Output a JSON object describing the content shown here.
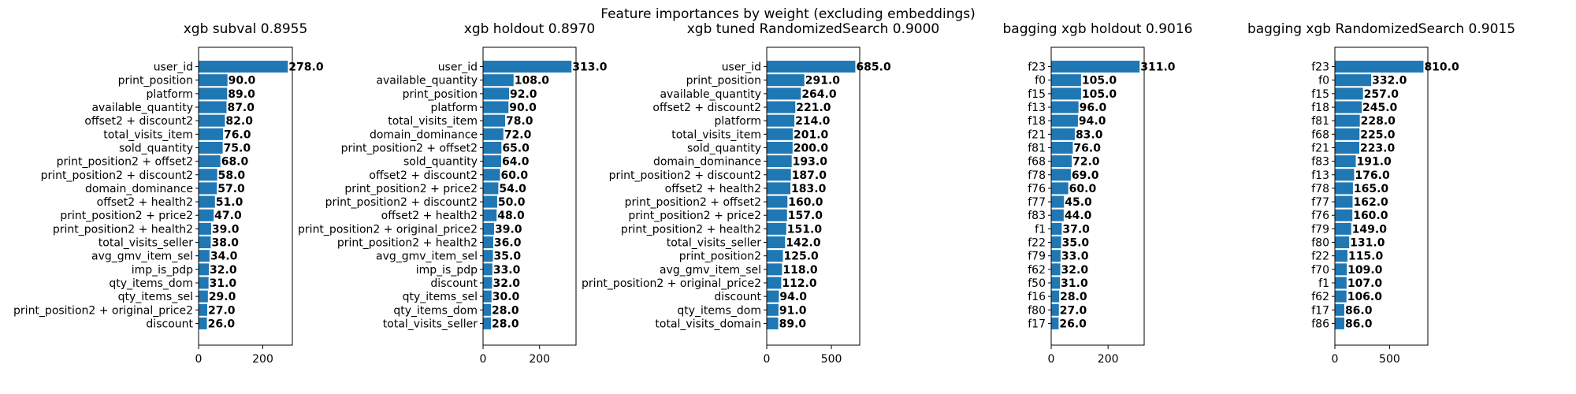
{
  "figure": {
    "title": "Feature importances by weight (excluding embeddings)"
  },
  "colors": {
    "bar": "#1f77b4",
    "axis": "#000000"
  },
  "chart_data": [
    {
      "type": "bar",
      "orientation": "horizontal",
      "title": "xgb subval 0.8955",
      "xlim": [
        0,
        292
      ],
      "xticks": [
        0,
        200
      ],
      "categories": [
        "user_id",
        "print_position",
        "platform",
        "available_quantity",
        "offset2 + discount2",
        "total_visits_item",
        "sold_quantity",
        "print_position2 + offset2",
        "print_position2 + discount2",
        "domain_dominance",
        "offset2 + health2",
        "print_position2 + price2",
        "print_position2 + health2",
        "total_visits_seller",
        "avg_gmv_item_sel",
        "imp_is_pdp",
        "qty_items_dom",
        "qty_items_sel",
        "print_position2 + original_price2",
        "discount"
      ],
      "values": [
        278.0,
        90.0,
        89.0,
        87.0,
        82.0,
        76.0,
        75.0,
        68.0,
        58.0,
        57.0,
        51.0,
        47.0,
        39.0,
        38.0,
        34.0,
        32.0,
        31.0,
        29.0,
        27.0,
        26.0
      ],
      "value_labels": [
        "278.0",
        "90.0",
        "89.0",
        "87.0",
        "82.0",
        "76.0",
        "75.0",
        "68.0",
        "58.0",
        "57.0",
        "51.0",
        "47.0",
        "39.0",
        "38.0",
        "34.0",
        "32.0",
        "31.0",
        "29.0",
        "27.0",
        "26.0"
      ]
    },
    {
      "type": "bar",
      "orientation": "horizontal",
      "title": "xgb holdout 0.8970",
      "xlim": [
        0,
        329
      ],
      "xticks": [
        0,
        200
      ],
      "categories": [
        "user_id",
        "available_quantity",
        "print_position",
        "platform",
        "total_visits_item",
        "domain_dominance",
        "print_position2 + offset2",
        "sold_quantity",
        "offset2 + discount2",
        "print_position2 + price2",
        "print_position2 + discount2",
        "offset2 + health2",
        "print_position2 + original_price2",
        "print_position2 + health2",
        "avg_gmv_item_sel",
        "imp_is_pdp",
        "discount",
        "qty_items_sel",
        "qty_items_dom",
        "total_visits_seller"
      ],
      "values": [
        313.0,
        108.0,
        92.0,
        90.0,
        78.0,
        72.0,
        65.0,
        64.0,
        60.0,
        54.0,
        50.0,
        48.0,
        39.0,
        36.0,
        35.0,
        33.0,
        32.0,
        30.0,
        28.0,
        28.0
      ],
      "value_labels": [
        "313.0",
        "108.0",
        "92.0",
        "90.0",
        "78.0",
        "72.0",
        "65.0",
        "64.0",
        "60.0",
        "54.0",
        "50.0",
        "48.0",
        "39.0",
        "36.0",
        "35.0",
        "33.0",
        "32.0",
        "30.0",
        "28.0",
        "28.0"
      ]
    },
    {
      "type": "bar",
      "orientation": "horizontal",
      "title": "xgb tuned RandomizedSearch 0.9000",
      "xlim": [
        0,
        719
      ],
      "xticks": [
        0,
        500
      ],
      "categories": [
        "user_id",
        "print_position",
        "available_quantity",
        "offset2 + discount2",
        "platform",
        "total_visits_item",
        "sold_quantity",
        "domain_dominance",
        "print_position2 + discount2",
        "offset2 + health2",
        "print_position2 + offset2",
        "print_position2 + price2",
        "print_position2 + health2",
        "total_visits_seller",
        "print_position2",
        "avg_gmv_item_sel",
        "print_position2 + original_price2",
        "discount",
        "qty_items_dom",
        "total_visits_domain"
      ],
      "values": [
        685.0,
        291.0,
        264.0,
        221.0,
        214.0,
        201.0,
        200.0,
        193.0,
        187.0,
        183.0,
        160.0,
        157.0,
        151.0,
        142.0,
        125.0,
        118.0,
        112.0,
        94.0,
        91.0,
        89.0
      ],
      "value_labels": [
        "685.0",
        "291.0",
        "264.0",
        "221.0",
        "214.0",
        "201.0",
        "200.0",
        "193.0",
        "187.0",
        "183.0",
        "160.0",
        "157.0",
        "151.0",
        "142.0",
        "125.0",
        "118.0",
        "112.0",
        "94.0",
        "91.0",
        "89.0"
      ]
    },
    {
      "type": "bar",
      "orientation": "horizontal",
      "title": "bagging xgb holdout 0.9016",
      "xlim": [
        0,
        327
      ],
      "xticks": [
        0,
        200
      ],
      "categories": [
        "f23",
        "f0",
        "f15",
        "f13",
        "f18",
        "f21",
        "f81",
        "f68",
        "f78",
        "f76",
        "f77",
        "f83",
        "f1",
        "f22",
        "f79",
        "f62",
        "f50",
        "f16",
        "f80",
        "f17"
      ],
      "values": [
        311.0,
        105.0,
        105.0,
        96.0,
        94.0,
        83.0,
        76.0,
        72.0,
        69.0,
        60.0,
        45.0,
        44.0,
        37.0,
        35.0,
        33.0,
        32.0,
        31.0,
        28.0,
        27.0,
        26.0
      ],
      "value_labels": [
        "311.0",
        "105.0",
        "105.0",
        "96.0",
        "94.0",
        "83.0",
        "76.0",
        "72.0",
        "69.0",
        "60.0",
        "45.0",
        "44.0",
        "37.0",
        "35.0",
        "33.0",
        "32.0",
        "31.0",
        "28.0",
        "27.0",
        "26.0"
      ]
    },
    {
      "type": "bar",
      "orientation": "horizontal",
      "title": "bagging xgb RandomizedSearch 0.9015",
      "xlim": [
        0,
        850
      ],
      "xticks": [
        0,
        500
      ],
      "categories": [
        "f23",
        "f0",
        "f15",
        "f18",
        "f81",
        "f68",
        "f21",
        "f83",
        "f13",
        "f78",
        "f77",
        "f76",
        "f79",
        "f80",
        "f22",
        "f70",
        "f1",
        "f62",
        "f17",
        "f86"
      ],
      "values": [
        810.0,
        332.0,
        257.0,
        245.0,
        228.0,
        225.0,
        223.0,
        191.0,
        176.0,
        165.0,
        162.0,
        160.0,
        149.0,
        131.0,
        115.0,
        109.0,
        107.0,
        106.0,
        86.0,
        86.0
      ],
      "value_labels": [
        "810.0",
        "332.0",
        "257.0",
        "245.0",
        "228.0",
        "225.0",
        "223.0",
        "191.0",
        "176.0",
        "165.0",
        "162.0",
        "160.0",
        "149.0",
        "131.0",
        "115.0",
        "109.0",
        "107.0",
        "106.0",
        "86.0",
        "86.0"
      ]
    }
  ]
}
